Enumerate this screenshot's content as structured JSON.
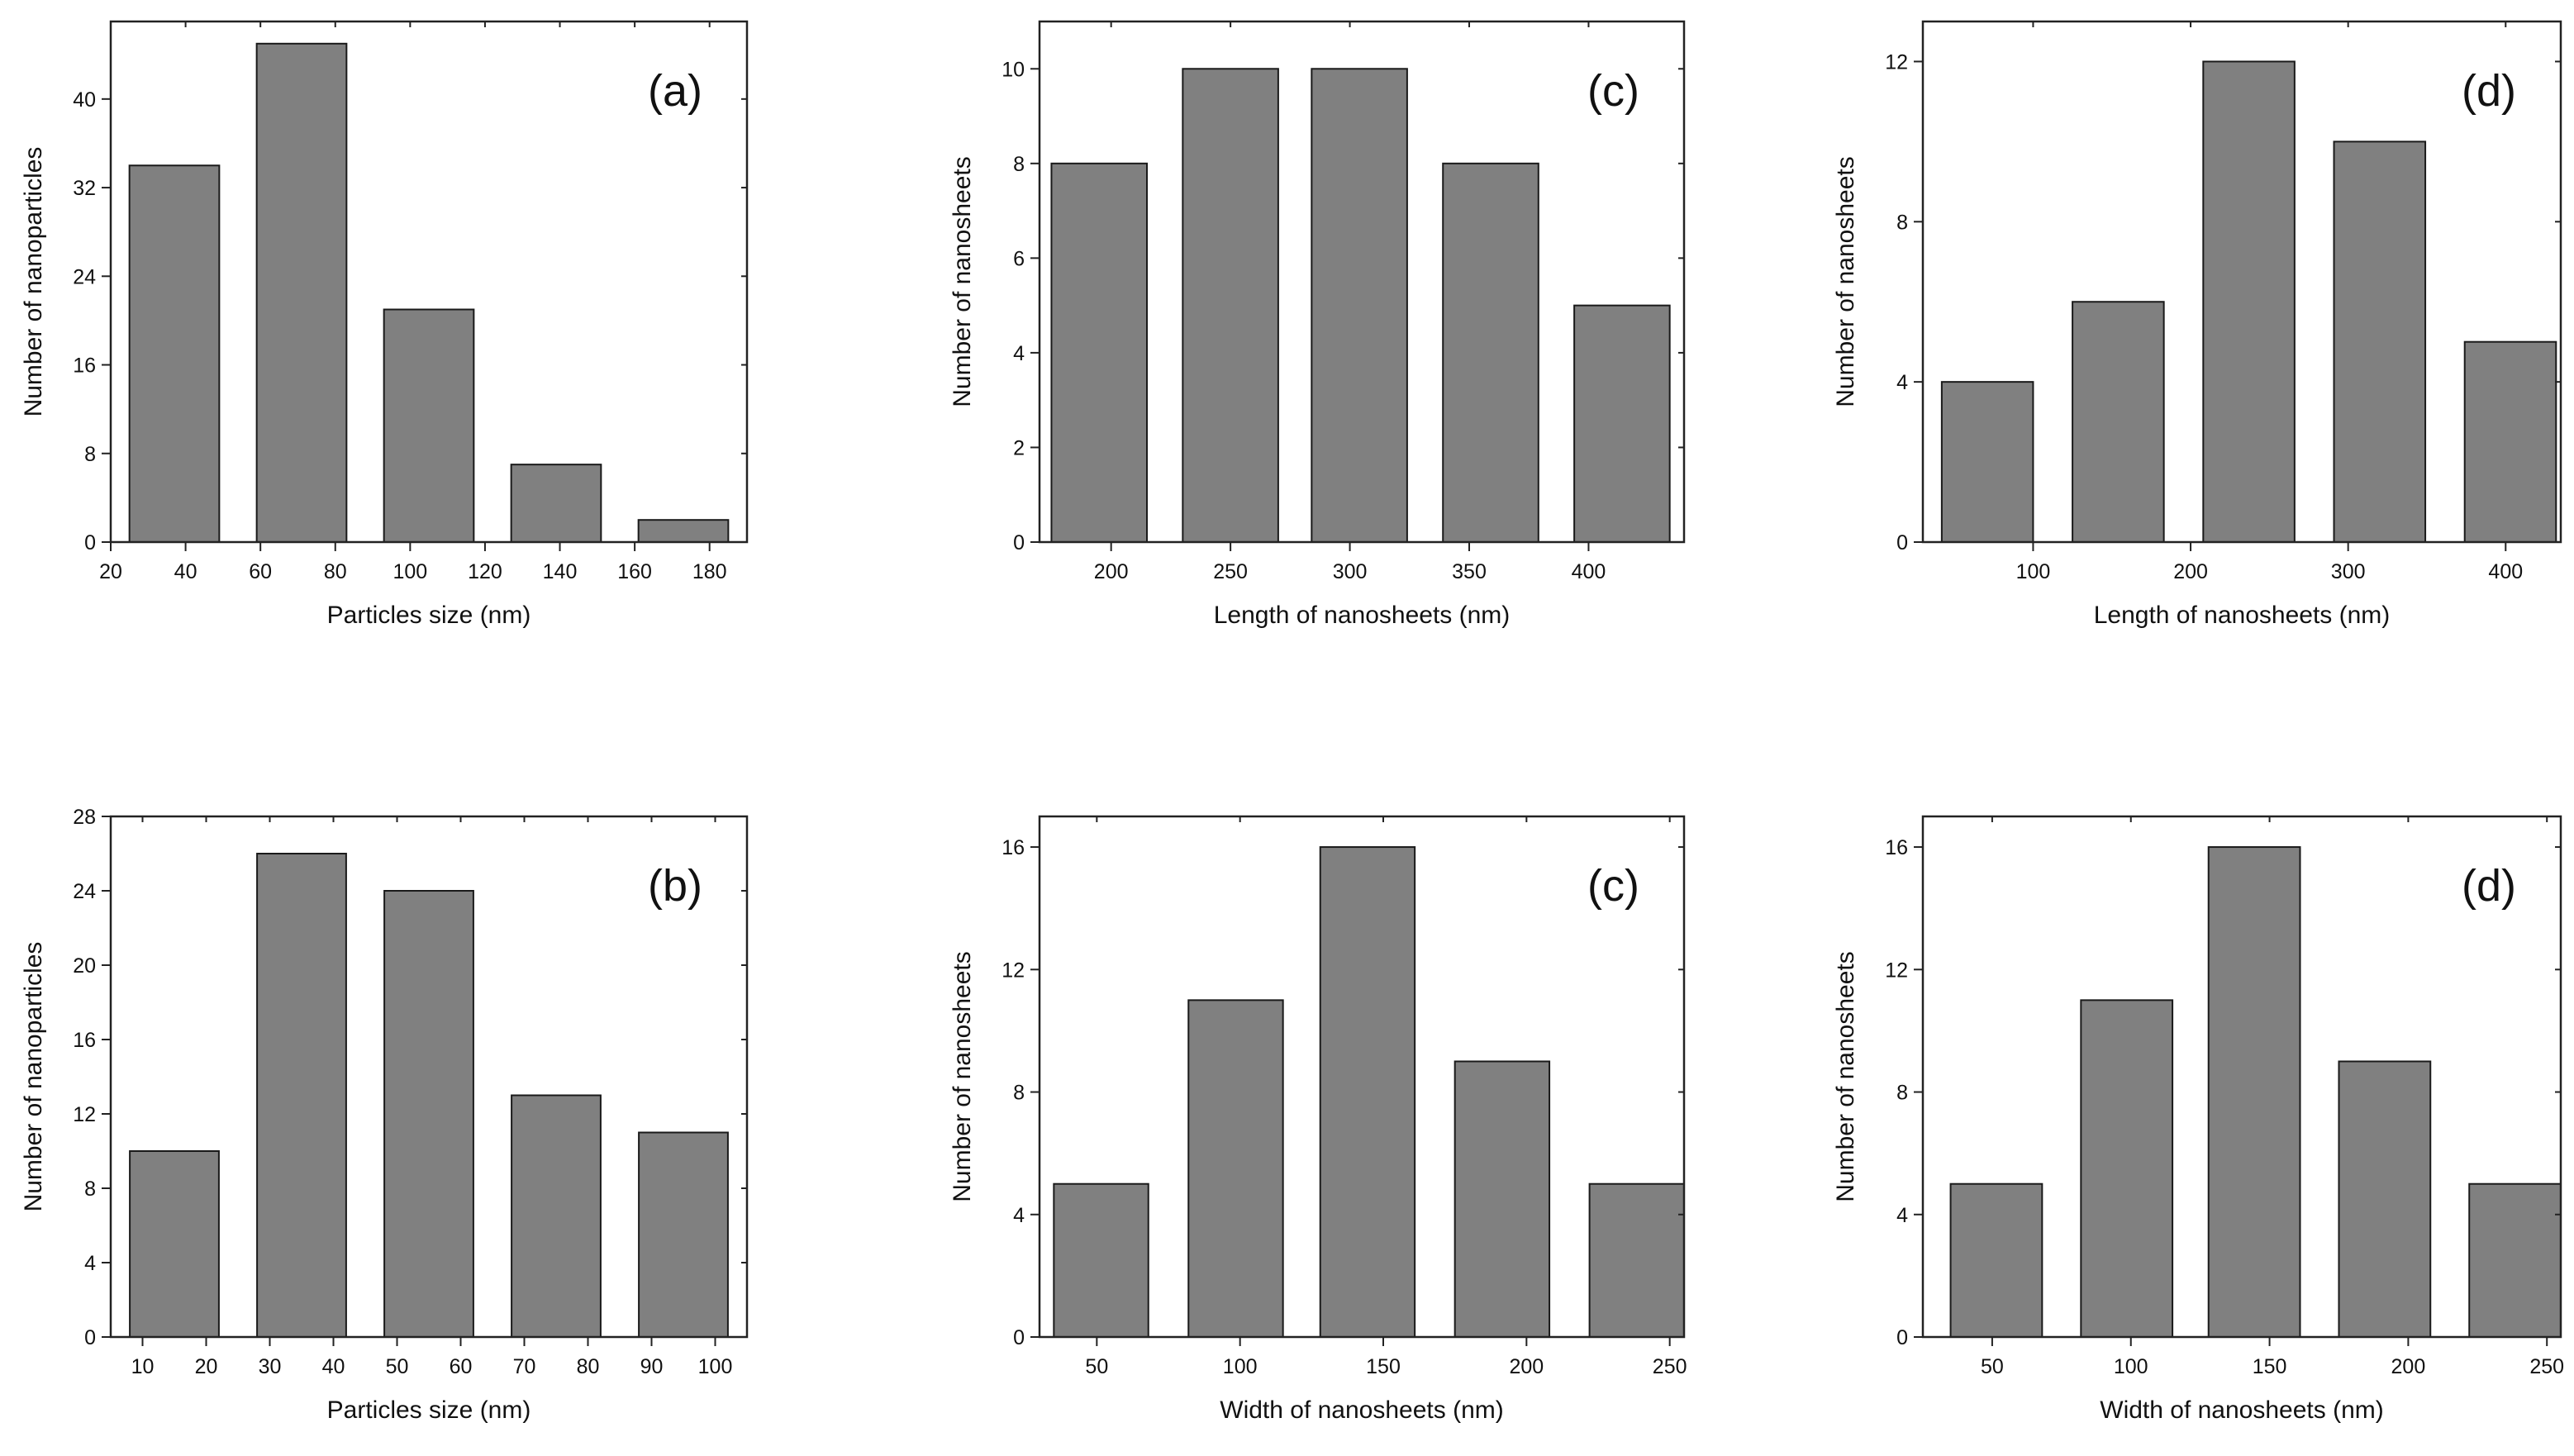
{
  "chart_data": [
    {
      "id": "a",
      "type": "bar",
      "panel_label": "(a)",
      "xlabel": "Particles size (nm)",
      "ylabel": "Number of nanoparticles",
      "xlim": [
        20,
        190
      ],
      "ylim": [
        0,
        47
      ],
      "xticks": [
        20,
        40,
        60,
        80,
        100,
        120,
        140,
        160,
        180
      ],
      "xtick_labels": [
        "20",
        "40",
        "60",
        "80",
        "100",
        "120",
        "140",
        "160",
        "180"
      ],
      "yticks": [
        0,
        8,
        16,
        24,
        32,
        40
      ],
      "ytick_labels": [
        "0",
        "8",
        "16",
        "24",
        "32",
        "40"
      ],
      "bars": [
        {
          "start": 25,
          "end": 49,
          "value": 34
        },
        {
          "start": 59,
          "end": 83,
          "value": 45
        },
        {
          "start": 93,
          "end": 117,
          "value": 21
        },
        {
          "start": 127,
          "end": 151,
          "value": 7
        },
        {
          "start": 161,
          "end": 185,
          "value": 2
        }
      ]
    },
    {
      "id": "c_length",
      "type": "bar",
      "panel_label": "(c)",
      "xlabel": "Length of nanosheets (nm)",
      "ylabel": "Number of nanosheets",
      "xlim": [
        170,
        440
      ],
      "ylim": [
        0,
        11
      ],
      "xticks": [
        200,
        250,
        300,
        350,
        400
      ],
      "xtick_labels": [
        "200",
        "250",
        "300",
        "350",
        "400"
      ],
      "yticks": [
        0,
        2,
        4,
        6,
        8,
        10
      ],
      "ytick_labels": [
        "0",
        "2",
        "4",
        "6",
        "8",
        "10"
      ],
      "bars": [
        {
          "start": 175,
          "end": 215,
          "value": 8
        },
        {
          "start": 230,
          "end": 270,
          "value": 10
        },
        {
          "start": 284,
          "end": 324,
          "value": 10
        },
        {
          "start": 339,
          "end": 379,
          "value": 8
        },
        {
          "start": 394,
          "end": 434,
          "value": 5
        }
      ]
    },
    {
      "id": "d_length",
      "type": "bar",
      "panel_label": "(d)",
      "xlabel": "Length of nanosheets (nm)",
      "ylabel": "Number of nanosheets",
      "xlim": [
        30,
        435
      ],
      "ylim": [
        0,
        13
      ],
      "xticks": [
        100,
        200,
        300,
        400
      ],
      "xtick_labels": [
        "100",
        "200",
        "300",
        "400"
      ],
      "yticks": [
        0,
        4,
        8,
        12
      ],
      "ytick_labels": [
        "0",
        "4",
        "8",
        "12"
      ],
      "bars": [
        {
          "start": 42,
          "end": 100,
          "value": 4
        },
        {
          "start": 125,
          "end": 183,
          "value": 6
        },
        {
          "start": 208,
          "end": 266,
          "value": 12
        },
        {
          "start": 291,
          "end": 349,
          "value": 10
        },
        {
          "start": 374,
          "end": 432,
          "value": 5
        }
      ]
    },
    {
      "id": "b",
      "type": "bar",
      "panel_label": "(b)",
      "xlabel": "Particles size (nm)",
      "ylabel": "Number of nanoparticles",
      "xlim": [
        5,
        105
      ],
      "ylim": [
        0,
        28
      ],
      "xticks": [
        10,
        20,
        30,
        40,
        50,
        60,
        70,
        80,
        90,
        100
      ],
      "xtick_labels": [
        "10",
        "20",
        "30",
        "40",
        "50",
        "60",
        "70",
        "80",
        "90",
        "100"
      ],
      "yticks": [
        0,
        4,
        8,
        12,
        16,
        20,
        24,
        28
      ],
      "ytick_labels": [
        "0",
        "4",
        "8",
        "12",
        "16",
        "20",
        "24",
        "28"
      ],
      "bars": [
        {
          "start": 8,
          "end": 22,
          "value": 10
        },
        {
          "start": 28,
          "end": 42,
          "value": 26
        },
        {
          "start": 48,
          "end": 62,
          "value": 24
        },
        {
          "start": 68,
          "end": 82,
          "value": 13
        },
        {
          "start": 88,
          "end": 102,
          "value": 11
        }
      ]
    },
    {
      "id": "c_width",
      "type": "bar",
      "panel_label": "(c)",
      "xlabel": "Width of nanosheets (nm)",
      "ylabel": "Number of nanosheets",
      "xlim": [
        30,
        255
      ],
      "ylim": [
        0,
        17
      ],
      "xticks": [
        50,
        100,
        150,
        200,
        250
      ],
      "xtick_labels": [
        "50",
        "100",
        "150",
        "200",
        "250"
      ],
      "yticks": [
        0,
        4,
        8,
        12,
        16
      ],
      "ytick_labels": [
        "0",
        "4",
        "8",
        "12",
        "16"
      ],
      "bars": [
        {
          "start": 35,
          "end": 68,
          "value": 5
        },
        {
          "start": 82,
          "end": 115,
          "value": 11
        },
        {
          "start": 128,
          "end": 161,
          "value": 16
        },
        {
          "start": 175,
          "end": 208,
          "value": 9
        },
        {
          "start": 222,
          "end": 255,
          "value": 5
        }
      ]
    },
    {
      "id": "d_width",
      "type": "bar",
      "panel_label": "(d)",
      "xlabel": "Width of nanosheets (nm)",
      "ylabel": "Number of nanosheets",
      "xlim": [
        25,
        255
      ],
      "ylim": [
        0,
        17
      ],
      "xticks": [
        50,
        100,
        150,
        200,
        250
      ],
      "xtick_labels": [
        "50",
        "100",
        "150",
        "200",
        "250"
      ],
      "yticks": [
        0,
        4,
        8,
        12,
        16
      ],
      "ytick_labels": [
        "0",
        "4",
        "8",
        "12",
        "16"
      ],
      "bars": [
        {
          "start": 35,
          "end": 68,
          "value": 5
        },
        {
          "start": 82,
          "end": 115,
          "value": 11
        },
        {
          "start": 128,
          "end": 161,
          "value": 16
        },
        {
          "start": 175,
          "end": 208,
          "value": 9
        },
        {
          "start": 222,
          "end": 255,
          "value": 5
        }
      ]
    }
  ]
}
